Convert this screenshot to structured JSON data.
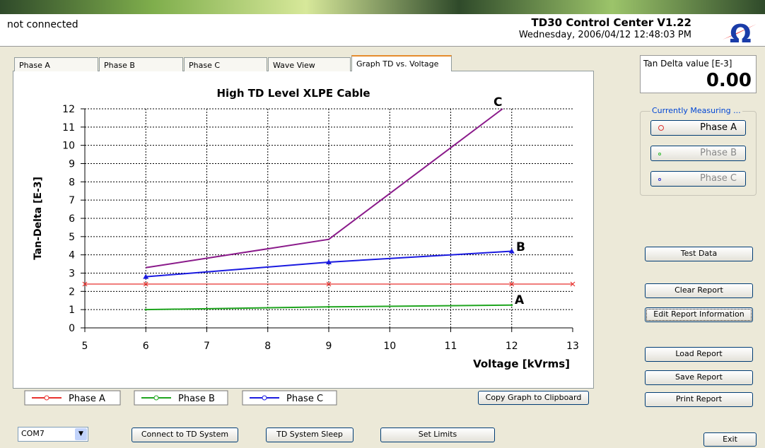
{
  "status": "not connected",
  "app_title": "TD30 Control Center V1.22",
  "datetime": "Wednesday, 2006/04/12 12:48:03 PM",
  "tabs": [
    "Phase A",
    "Phase B",
    "Phase C",
    "Wave View",
    "Graph TD vs. Voltage"
  ],
  "tan_delta": {
    "label": "Tan Delta value [E-3]",
    "value": "0.00"
  },
  "measuring": {
    "title": "Currently Measuring ...",
    "phases": [
      "Phase A",
      "Phase B",
      "Phase C"
    ]
  },
  "side_buttons": [
    "Test Data",
    "Clear Report",
    "Edit Report Information",
    "Load Report",
    "Save Report",
    "Print Report"
  ],
  "copy_button": "Copy Graph to Clipboard",
  "port": "COM7",
  "bottom_buttons": [
    "Connect to TD System",
    "TD System Sleep",
    "Set Limits"
  ],
  "exit_button": "Exit",
  "chart_data": {
    "type": "line",
    "title": "High TD Level XLPE Cable",
    "x_label": "Voltage [kVrms]",
    "y_label": "Tan-Delta [E-3]",
    "xlim": [
      5,
      13
    ],
    "xticks": [
      5,
      6,
      7,
      8,
      9,
      10,
      11,
      12,
      13
    ],
    "ylim": [
      0,
      12
    ],
    "yticks": [
      0,
      1,
      2,
      3,
      4,
      5,
      6,
      7,
      8,
      9,
      10,
      11,
      12
    ],
    "grid": true,
    "series": [
      {
        "name": "Phase A",
        "color": "#e8322e",
        "x": [
          5,
          6,
          9,
          12,
          13
        ],
        "values": [
          2.4,
          2.4,
          2.4,
          2.4,
          2.4
        ]
      },
      {
        "name": "Phase B",
        "color": "#1fa51f",
        "x": [
          6,
          9,
          12
        ],
        "values": [
          1.0,
          1.15,
          1.25
        ]
      },
      {
        "name": "Phase C",
        "color": "#1a1ae0",
        "x": [
          6,
          9,
          12
        ],
        "values": [
          2.8,
          3.6,
          4.2
        ]
      },
      {
        "color": "#8a1a8a",
        "x": [
          6,
          9,
          11.85
        ],
        "values": [
          3.3,
          4.85,
          12
        ]
      }
    ],
    "annotations": [
      "C",
      "B",
      "A"
    ]
  }
}
